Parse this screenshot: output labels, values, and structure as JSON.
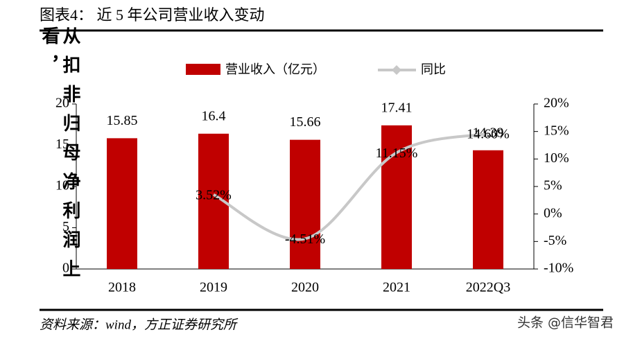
{
  "chart_data": {
    "type": "bar-line",
    "title": "图表4：  近 5 年公司营业收入变动",
    "overlay_text": "从扣非归母净利润上看，",
    "source": "资料来源：wind，方正证券研究所",
    "watermark": "头条 @信华智君",
    "categories": [
      "2018",
      "2019",
      "2020",
      "2021",
      "2022Q3"
    ],
    "series": [
      {
        "name": "营业收入（亿元）",
        "color": "#c00000",
        "values": [
          15.85,
          16.4,
          15.66,
          17.41,
          14.39
        ]
      },
      {
        "name": "同比",
        "color": "#c8c8c8",
        "axis": "y2",
        "values": [
          null,
          3.52,
          -4.51,
          11.15,
          14.6
        ],
        "value_labels": [
          null,
          "3.52%",
          "-4.51%",
          "11.15%",
          "14.60%"
        ]
      }
    ],
    "ylim": [
      0,
      20
    ],
    "yticks": [
      0,
      5,
      10,
      15,
      20
    ],
    "y2lim": [
      -10,
      20
    ],
    "y2ticks": [
      {
        "value": -10,
        "label": "-10%"
      },
      {
        "value": -5,
        "label": "-5%"
      },
      {
        "value": 0,
        "label": "0%"
      },
      {
        "value": 5,
        "label": "5%"
      },
      {
        "value": 10,
        "label": "10%"
      },
      {
        "value": 15,
        "label": "15%"
      },
      {
        "value": 20,
        "label": "20%"
      }
    ]
  }
}
